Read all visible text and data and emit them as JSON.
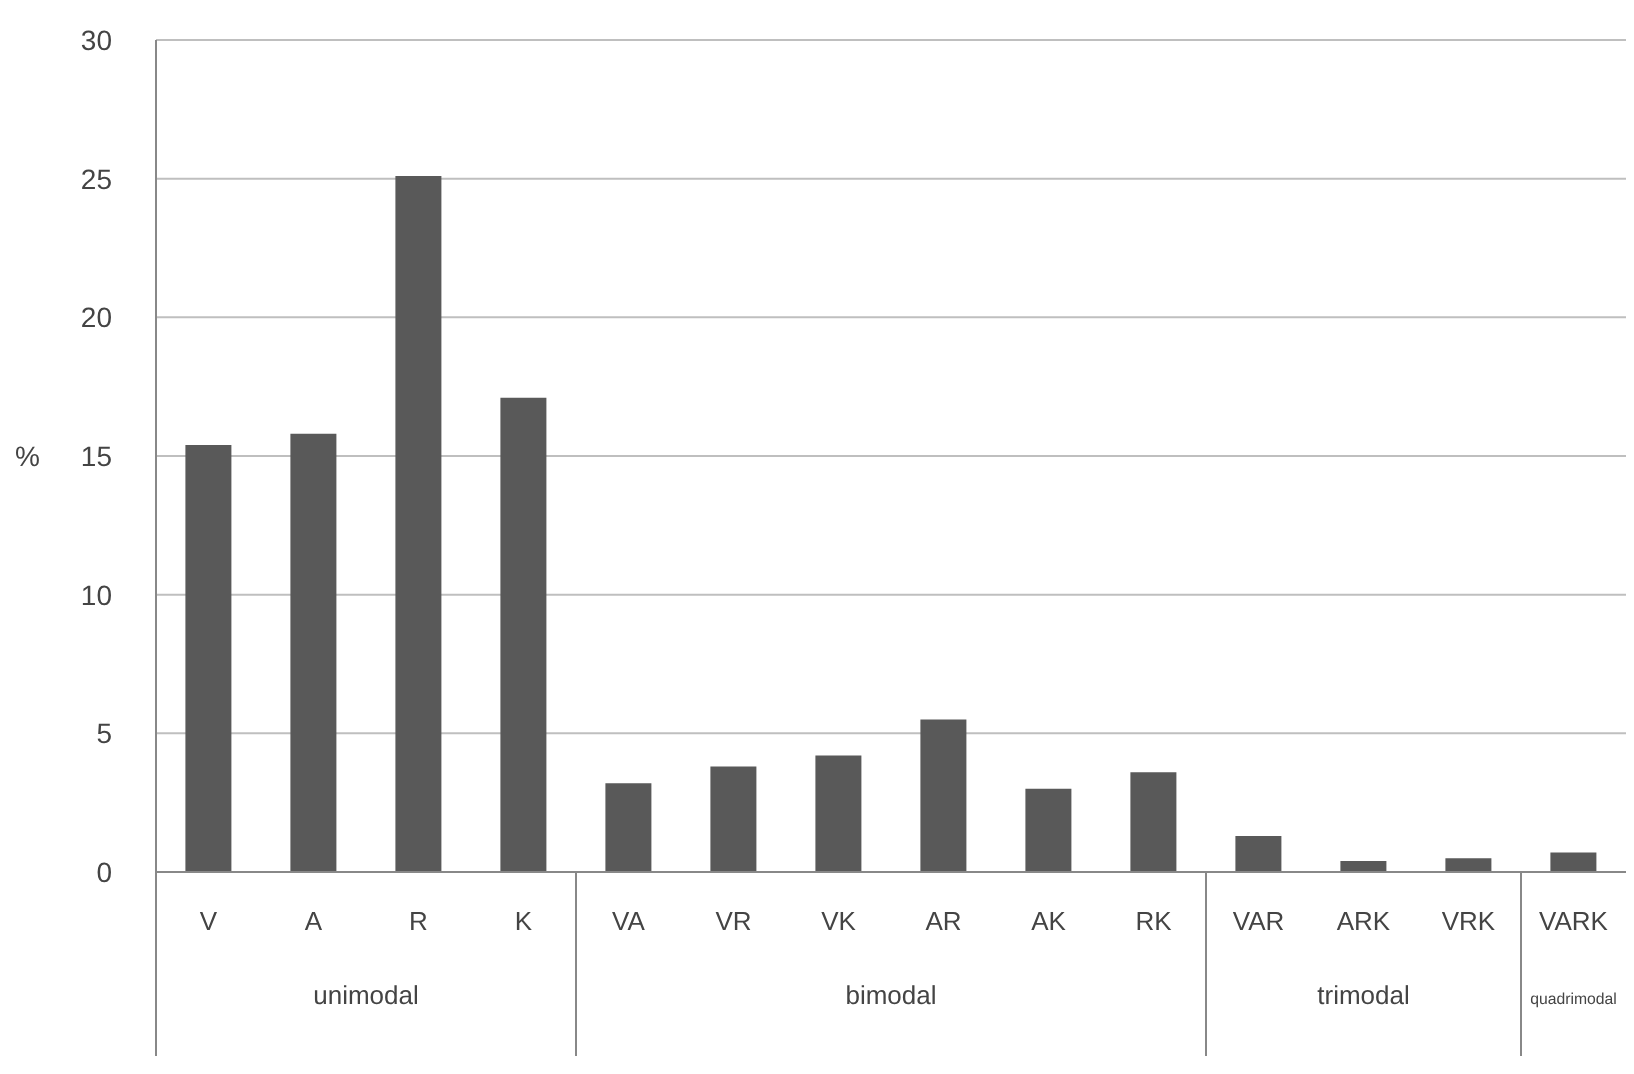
{
  "chart_data": {
    "type": "bar",
    "ylabel": "%",
    "categories": [
      "V",
      "A",
      "R",
      "K",
      "VA",
      "VR",
      "VK",
      "AR",
      "AK",
      "RK",
      "VAR",
      "ARK",
      "VRK",
      "VARK"
    ],
    "values": [
      15.4,
      15.8,
      25.1,
      17.1,
      3.2,
      3.8,
      4.2,
      5.5,
      3.0,
      3.6,
      1.3,
      0.4,
      0.5,
      0.7
    ],
    "color": "#595959",
    "ylim": [
      0,
      30
    ],
    "yticks": [
      0,
      5,
      10,
      15,
      20,
      25,
      30
    ],
    "grid": "y",
    "annotations": [
      "unimodal",
      "bimodal",
      "trimodal",
      "quadrimodal"
    ]
  }
}
